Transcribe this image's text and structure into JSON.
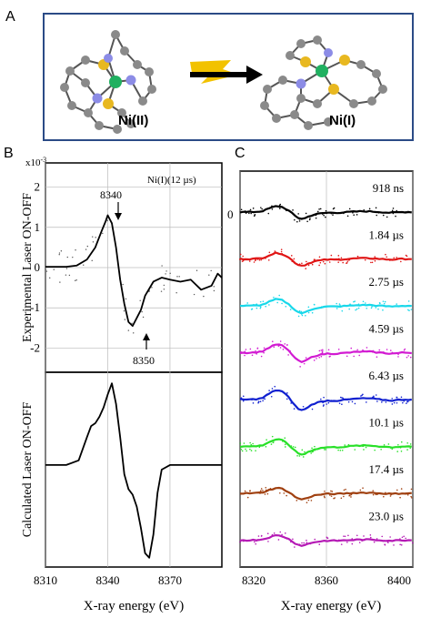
{
  "panel_labels": {
    "a": "A",
    "b": "B",
    "c": "C"
  },
  "panel_a": {
    "left_label": "Ni(II)",
    "right_label": "Ni(I)",
    "colors": {
      "border": "#2b4b86",
      "carbon": "#8a8a8a",
      "sulfur": "#e8b820",
      "nitrogen": "#8c8ce6",
      "nickel": "#20b060",
      "flash": "#f2c200"
    }
  },
  "panel_b": {
    "exponent": "x10",
    "exponent_power": "-3",
    "legend": "Ni(I)(12 µs)",
    "top_ylabel": "Experimental Laser ON-OFF",
    "bottom_ylabel": "Calculated Laser ON-OFF",
    "xlabel": "X-ray energy (eV)",
    "annotation_8340": "8340",
    "annotation_8350": "8350"
  },
  "panel_c": {
    "xlabel": "X-ray energy (eV)",
    "zero_label": "0"
  },
  "chart_data": [
    {
      "type": "line",
      "panel": "B-top",
      "ylabel": "Experimental Laser ON-OFF",
      "legend": "Ni(I)(12 µs)",
      "xlim": [
        8310,
        8395
      ],
      "ylim": [
        -2.6,
        2.6
      ],
      "y_ticks": [
        "-2",
        "-1",
        "0",
        "1",
        "2"
      ],
      "y_tick_values": [
        -2,
        -1,
        0,
        1,
        2
      ],
      "x": [
        8310,
        8320,
        8325,
        8330,
        8334,
        8337,
        8339,
        8340,
        8342,
        8344,
        8346,
        8348,
        8350,
        8352,
        8354,
        8356,
        8358,
        8362,
        8366,
        8370,
        8375,
        8380,
        8385,
        8390,
        8393,
        8395
      ],
      "y": [
        0.02,
        0.02,
        0.05,
        0.2,
        0.5,
        0.9,
        1.15,
        1.3,
        1.1,
        0.5,
        -0.3,
        -0.9,
        -1.35,
        -1.45,
        -1.25,
        -1.05,
        -0.7,
        -0.35,
        -0.25,
        -0.3,
        -0.35,
        -0.3,
        -0.55,
        -0.45,
        -0.15,
        -0.25
      ],
      "annotations": [
        {
          "x": 8340,
          "text": "8340"
        },
        {
          "x": 8350,
          "text": "8350"
        }
      ],
      "grid": true
    },
    {
      "type": "line",
      "panel": "B-bottom",
      "ylabel": "Calculated Laser ON-OFF",
      "xlabel": "X-ray energy (eV)",
      "xlim": [
        8310,
        8395
      ],
      "x_ticks": [
        "8310",
        "8340",
        "8370"
      ],
      "x_tick_values": [
        8310,
        8340,
        8370
      ],
      "ylim": [
        -1.1,
        1.0
      ],
      "x": [
        8310,
        8320,
        8326,
        8330,
        8332,
        8334,
        8336,
        8338,
        8340,
        8342,
        8344,
        8346,
        8348,
        8350,
        8352,
        8354,
        8356,
        8358,
        8360,
        8362,
        8364,
        8366,
        8370,
        8380,
        8395
      ],
      "y": [
        0.0,
        0.0,
        0.05,
        0.3,
        0.42,
        0.45,
        0.52,
        0.62,
        0.76,
        0.88,
        0.66,
        0.3,
        -0.1,
        -0.26,
        -0.32,
        -0.45,
        -0.68,
        -0.95,
        -1.0,
        -0.75,
        -0.3,
        -0.05,
        0.0,
        0.0,
        0.0
      ],
      "grid": true
    },
    {
      "type": "line",
      "panel": "C",
      "xlabel": "X-ray energy (eV)",
      "xlim": [
        8320,
        8400
      ],
      "x_ticks": [
        "8320",
        "8360",
        "8400"
      ],
      "x_tick_values": [
        8320,
        8360,
        8400
      ],
      "y_tick_label": "0",
      "base_shape": {
        "x": [
          8320,
          8325,
          8330,
          8334,
          8337,
          8340,
          8343,
          8346,
          8348,
          8350,
          8352,
          8355,
          8360,
          8365,
          8370,
          8375,
          8380,
          8385,
          8390,
          8395,
          8400
        ],
        "y": [
          0.0,
          0.0,
          0.05,
          0.3,
          0.45,
          0.35,
          0.05,
          -0.35,
          -0.5,
          -0.45,
          -0.3,
          -0.15,
          -0.05,
          -0.05,
          0.0,
          0.05,
          0.05,
          0.0,
          -0.05,
          0.0,
          0.0
        ]
      },
      "series": [
        {
          "name": "918 ns",
          "color": "#000000",
          "amplitude": 1.0
        },
        {
          "name": "1.84 µs",
          "color": "#e01515",
          "amplitude": 1.0
        },
        {
          "name": "2.75 µs",
          "color": "#18d8ea",
          "amplitude": 1.1
        },
        {
          "name": "4.59 µs",
          "color": "#d21ad2",
          "amplitude": 1.4
        },
        {
          "name": "6.43 µs",
          "color": "#1020d0",
          "amplitude": 1.6
        },
        {
          "name": "10.1 µs",
          "color": "#28e028",
          "amplitude": 1.2
        },
        {
          "name": "17.4 µs",
          "color": "#a04010",
          "amplitude": 0.9
        },
        {
          "name": "23.0 µs",
          "color": "#b51ab5",
          "amplitude": 0.8
        }
      ],
      "grid": true
    }
  ]
}
